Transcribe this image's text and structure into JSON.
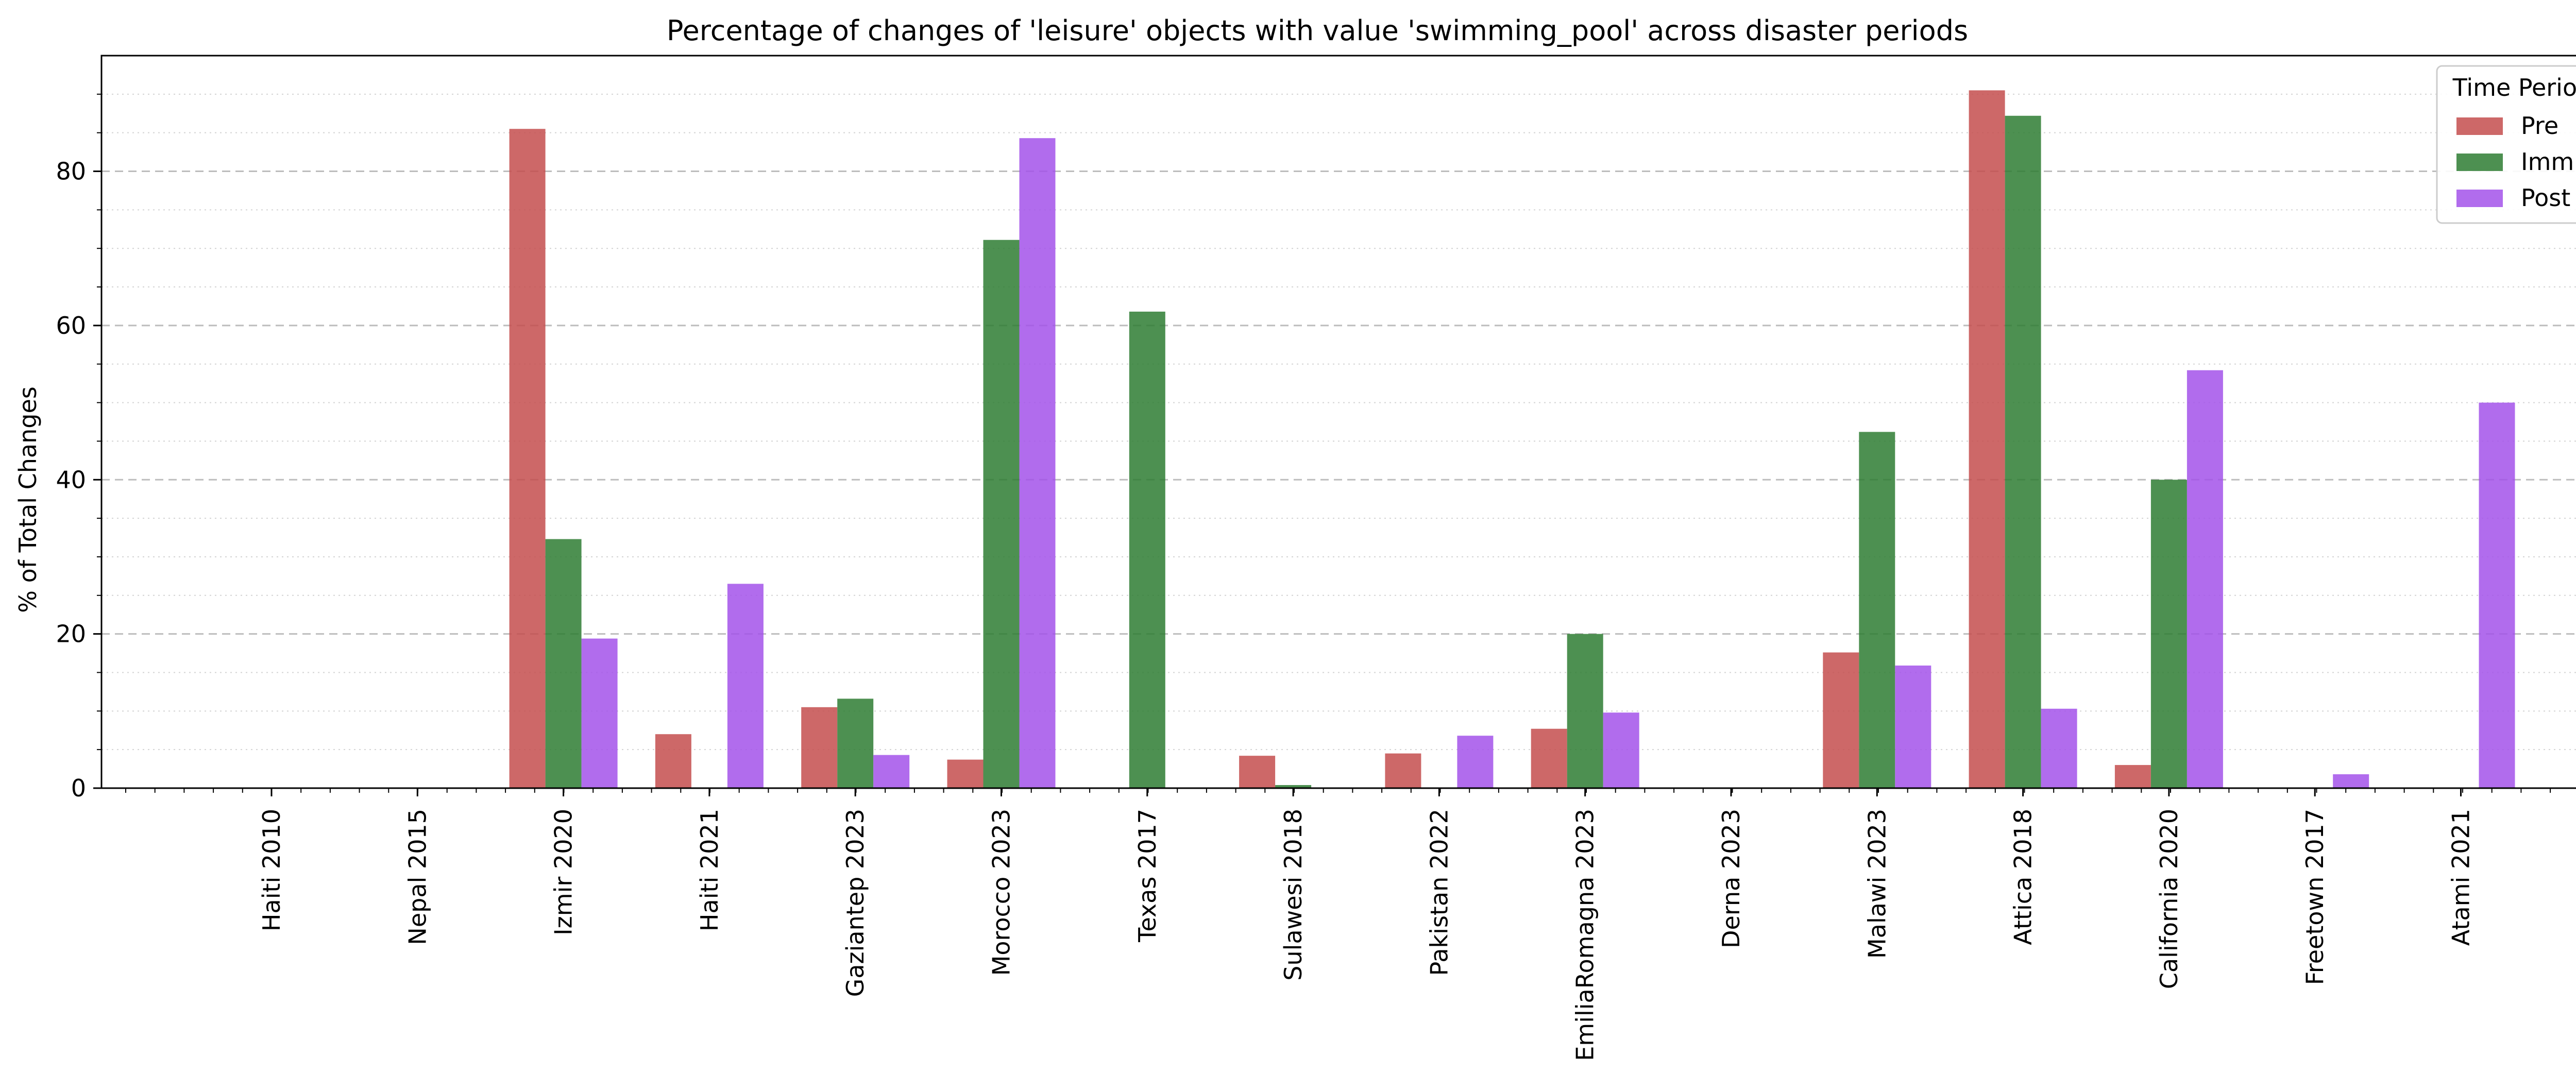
{
  "chart_data": {
    "type": "bar",
    "title": "Percentage of changes of 'leisure' objects with value 'swimming_pool' across disaster periods",
    "xlabel": "",
    "ylabel": "% of Total Changes",
    "ylim": [
      0,
      95
    ],
    "yticks": [
      0,
      20,
      40,
      60,
      80
    ],
    "grid": true,
    "legend": {
      "title": "Time Period",
      "placement": "top-right"
    },
    "categories": [
      "Haiti 2010",
      "Nepal 2015",
      "Izmir 2020",
      "Haiti 2021",
      "Gaziantep 2023",
      "Morocco 2023",
      "Texas 2017",
      "Sulawesi 2018",
      "Pakistan 2022",
      "EmiliaRomagna 2023",
      "Derna 2023",
      "Malawi 2023",
      "Attica 2018",
      "California 2020",
      "Freetown 2017",
      "Atami 2021"
    ],
    "series": [
      {
        "name": "Pre",
        "color": "#c44e4e",
        "values": [
          0,
          0,
          85.5,
          7.0,
          10.5,
          3.7,
          0,
          4.2,
          4.5,
          7.7,
          0,
          17.6,
          90.5,
          3.0,
          0,
          0
        ]
      },
      {
        "name": "Imm",
        "color": "#2e7d32",
        "values": [
          0,
          0,
          32.3,
          0,
          11.6,
          71.1,
          61.8,
          0.4,
          0,
          20.0,
          0,
          46.2,
          87.2,
          40.0,
          0,
          0
        ]
      },
      {
        "name": "Post",
        "color": "#a352ea",
        "values": [
          0,
          0,
          19.4,
          26.5,
          4.3,
          84.3,
          0,
          0,
          6.8,
          9.8,
          0,
          15.9,
          10.3,
          54.2,
          1.8,
          50.0
        ]
      }
    ]
  }
}
